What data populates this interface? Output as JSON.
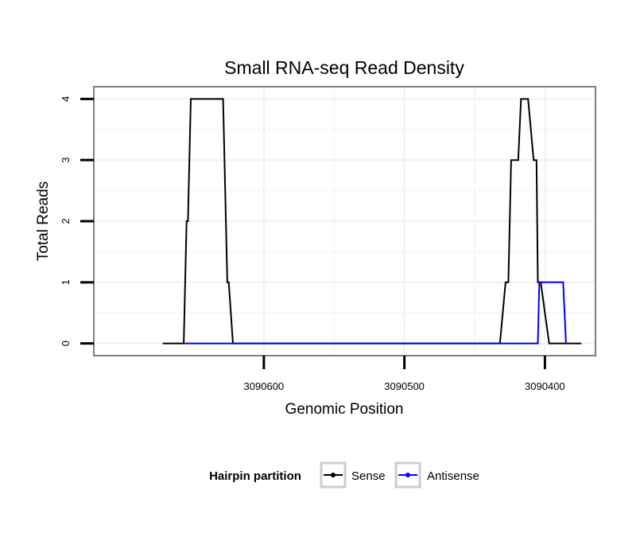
{
  "chart_data": {
    "type": "line",
    "title": "Small RNA-seq Read Density",
    "xlabel": "Genomic Position",
    "ylabel": "Total Reads",
    "x_reversed": true,
    "xlim": [
      3090721,
      3090364
    ],
    "ylim": [
      -0.2,
      4.2
    ],
    "x_ticks": [
      3090600,
      3090500,
      3090400
    ],
    "x_tick_labels": [
      "3090600",
      "3090500",
      "3090400"
    ],
    "y_ticks": [
      0,
      1,
      2,
      3,
      4
    ],
    "y_tick_labels": [
      "0",
      "1",
      "2",
      "3",
      "4"
    ],
    "grid": true,
    "legend": {
      "title": "Hairpin partition",
      "position": "bottom",
      "entries": [
        {
          "label": "Sense",
          "color": "#000000"
        },
        {
          "label": "Antisense",
          "color": "#0000ff"
        }
      ]
    },
    "series": [
      {
        "name": "Sense",
        "color": "#000000",
        "x": [
          3090672,
          3090657,
          3090655,
          3090654,
          3090652,
          3090629,
          3090626,
          3090625,
          3090622,
          3090432,
          3090428,
          3090426,
          3090424,
          3090419,
          3090417,
          3090412,
          3090408,
          3090406,
          3090405,
          3090403,
          3090397,
          3090395,
          3090386,
          3090374
        ],
        "y": [
          0,
          0,
          2,
          2,
          4,
          4,
          1,
          1,
          0,
          0,
          1,
          1,
          3,
          3,
          4,
          4,
          3,
          3,
          1,
          1,
          0,
          0,
          0,
          0
        ]
      },
      {
        "name": "Antisense",
        "color": "#0000ff",
        "x": [
          3090657,
          3090622,
          3090405,
          3090404,
          3090387,
          3090385
        ],
        "y": [
          0,
          0,
          0,
          1,
          1,
          0
        ]
      }
    ]
  }
}
